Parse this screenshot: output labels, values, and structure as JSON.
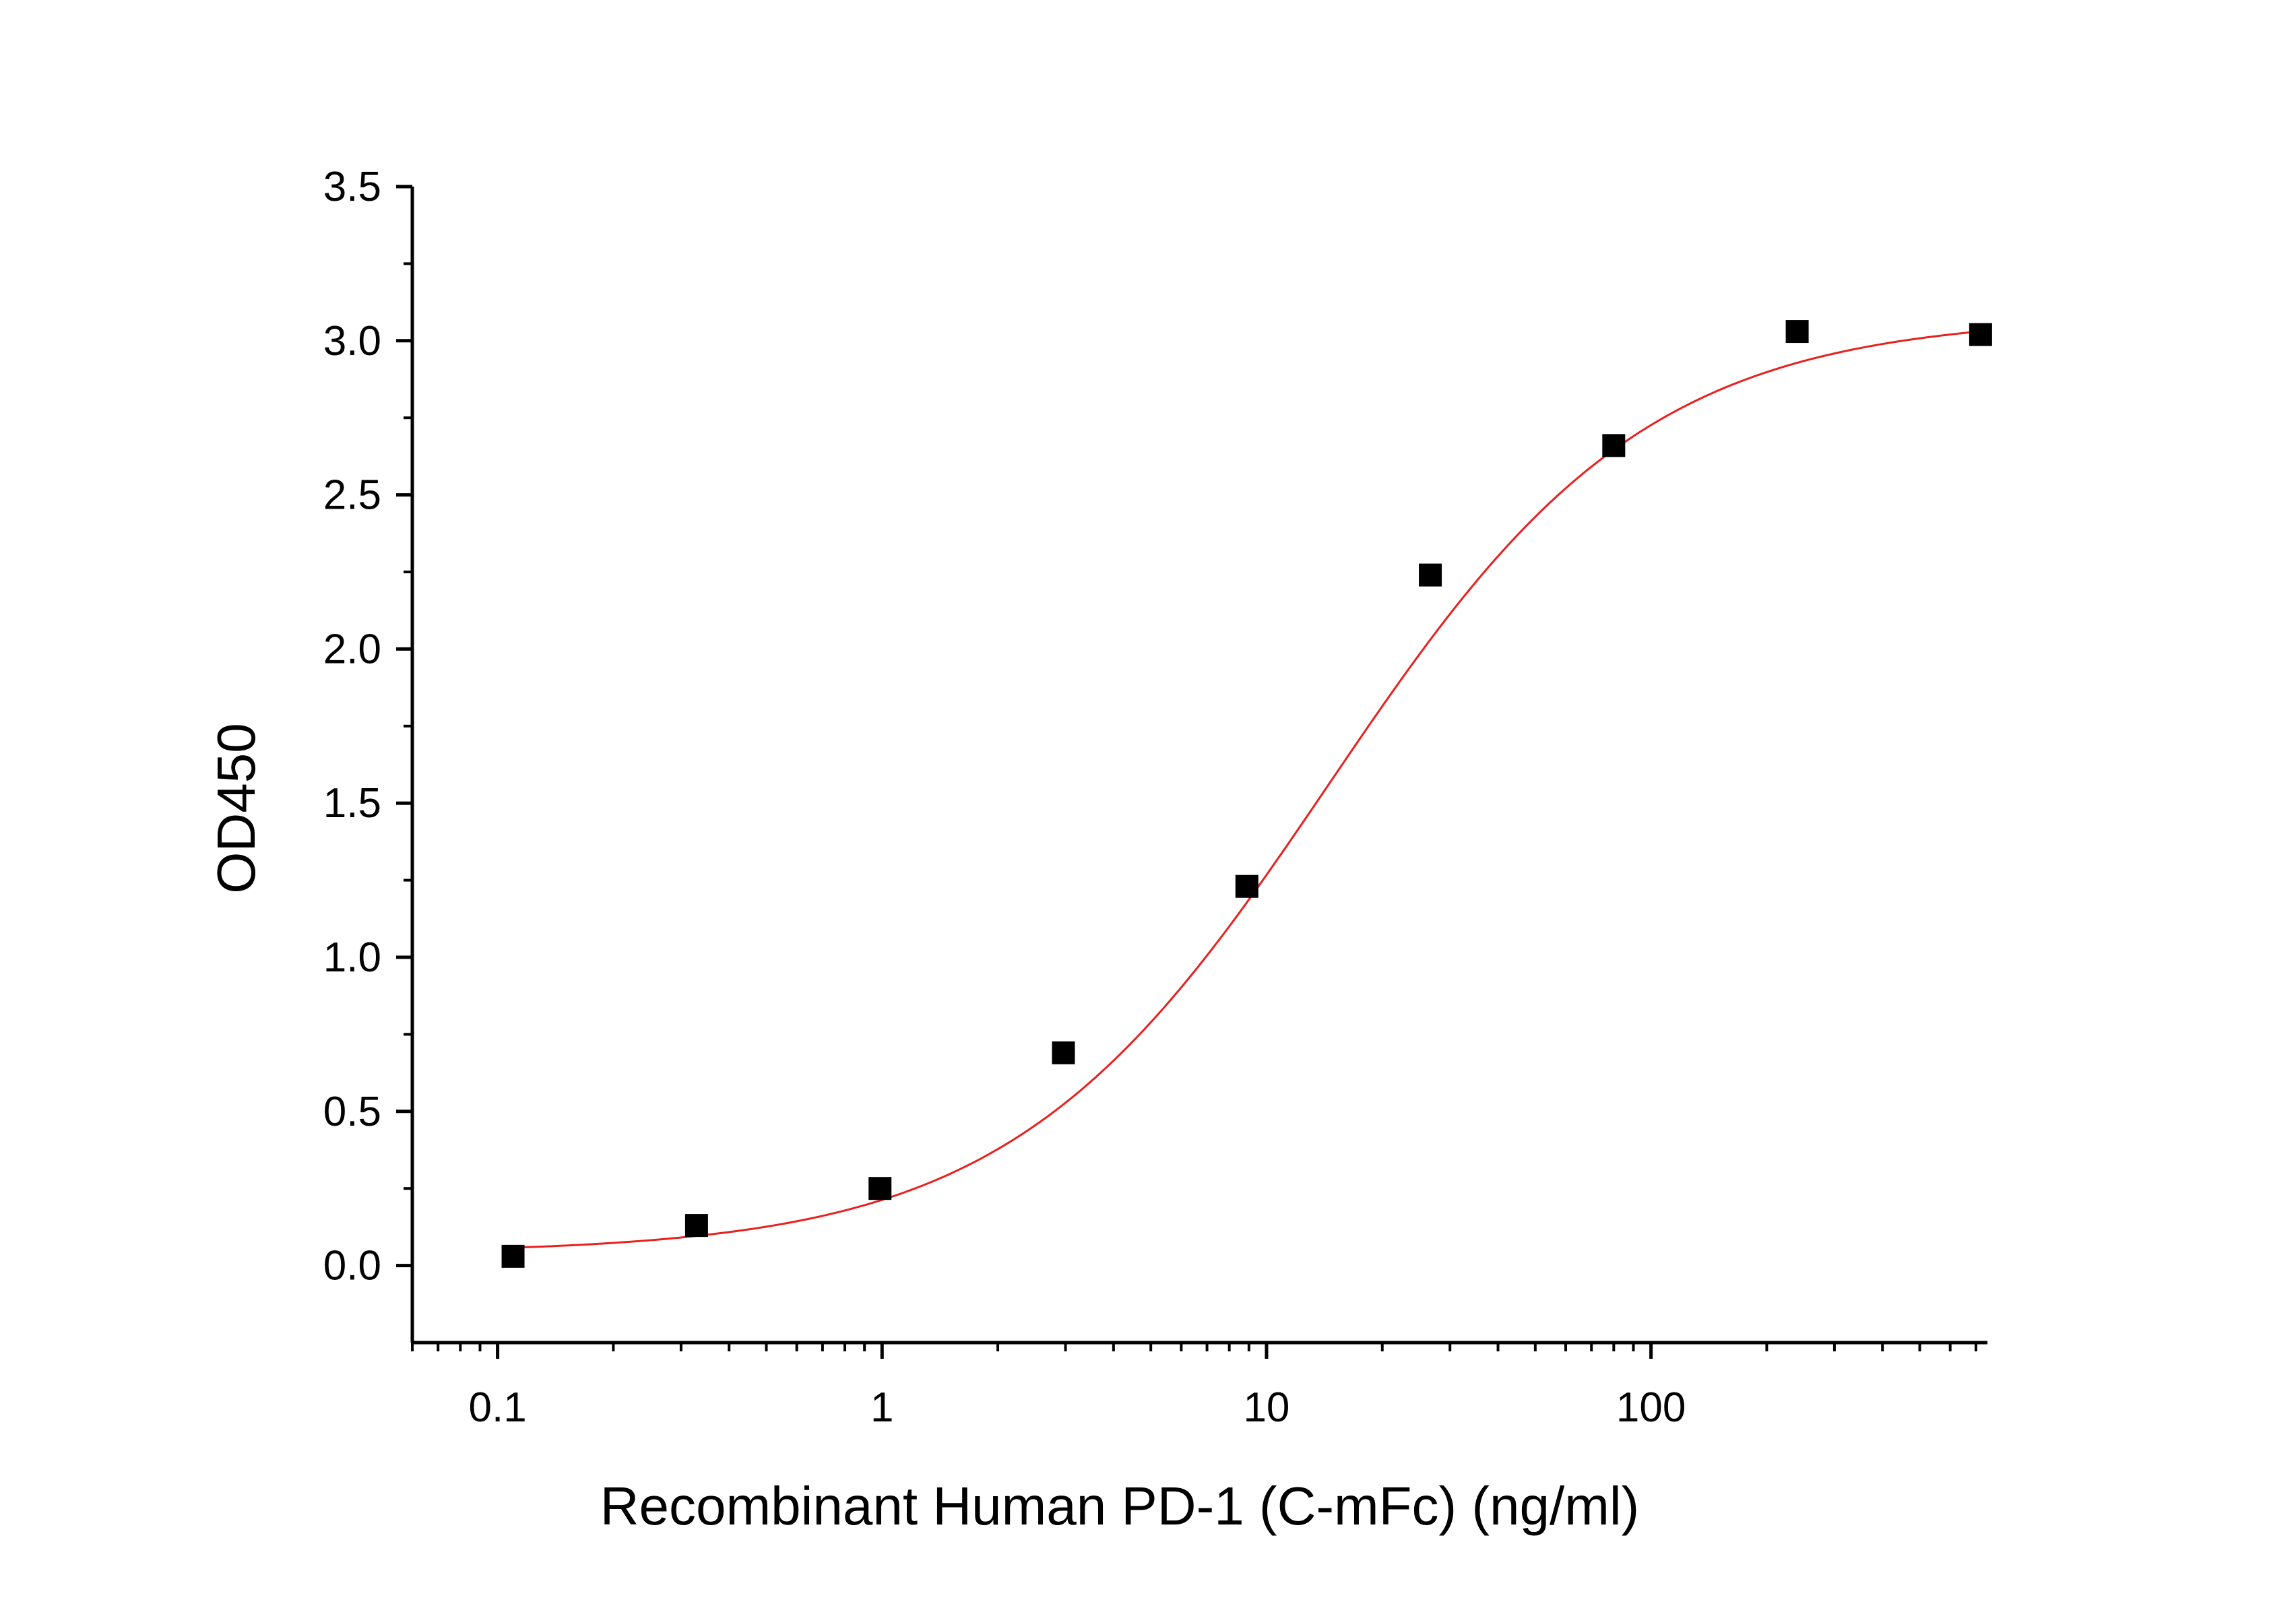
{
  "chart_data": {
    "type": "scatter",
    "title": "",
    "xlabel": "Recombinant Human PD-1 (C-mFc) (ng/ml)",
    "ylabel": "OD450",
    "x_scale": "log",
    "xlim": [
      0.06,
      750
    ],
    "ylim": [
      -0.25,
      3.5
    ],
    "x_ticks": [
      {
        "value": 0.1,
        "label": "0.1"
      },
      {
        "value": 1,
        "label": "1"
      },
      {
        "value": 10,
        "label": "10"
      },
      {
        "value": 100,
        "label": "100"
      }
    ],
    "y_ticks": [
      {
        "value": 0.0,
        "label": "0.0"
      },
      {
        "value": 0.5,
        "label": "0.5"
      },
      {
        "value": 1.0,
        "label": "1.0"
      },
      {
        "value": 1.5,
        "label": "1.5"
      },
      {
        "value": 2.0,
        "label": "2.0"
      },
      {
        "value": 2.5,
        "label": "2.5"
      },
      {
        "value": 3.0,
        "label": "3.0"
      },
      {
        "value": 3.5,
        "label": "3.5"
      }
    ],
    "grid": false,
    "legend": "none",
    "series": [
      {
        "kind": "points",
        "marker": "square",
        "color": "#000000",
        "x": [
          0.1097,
          0.3292,
          0.9877,
          2.963,
          8.889,
          26.67,
          80.0,
          240.0,
          720.0
        ],
        "y": [
          0.03,
          0.13,
          0.25,
          0.69,
          1.23,
          2.24,
          2.66,
          3.03,
          3.02
        ]
      },
      {
        "kind": "fit-curve",
        "model": "4-parameter logistic",
        "color": "#e8201e",
        "params": {
          "bottom": 0.04,
          "top": 3.08,
          "ec50": 14.5,
          "hill": 1.05
        }
      }
    ]
  }
}
